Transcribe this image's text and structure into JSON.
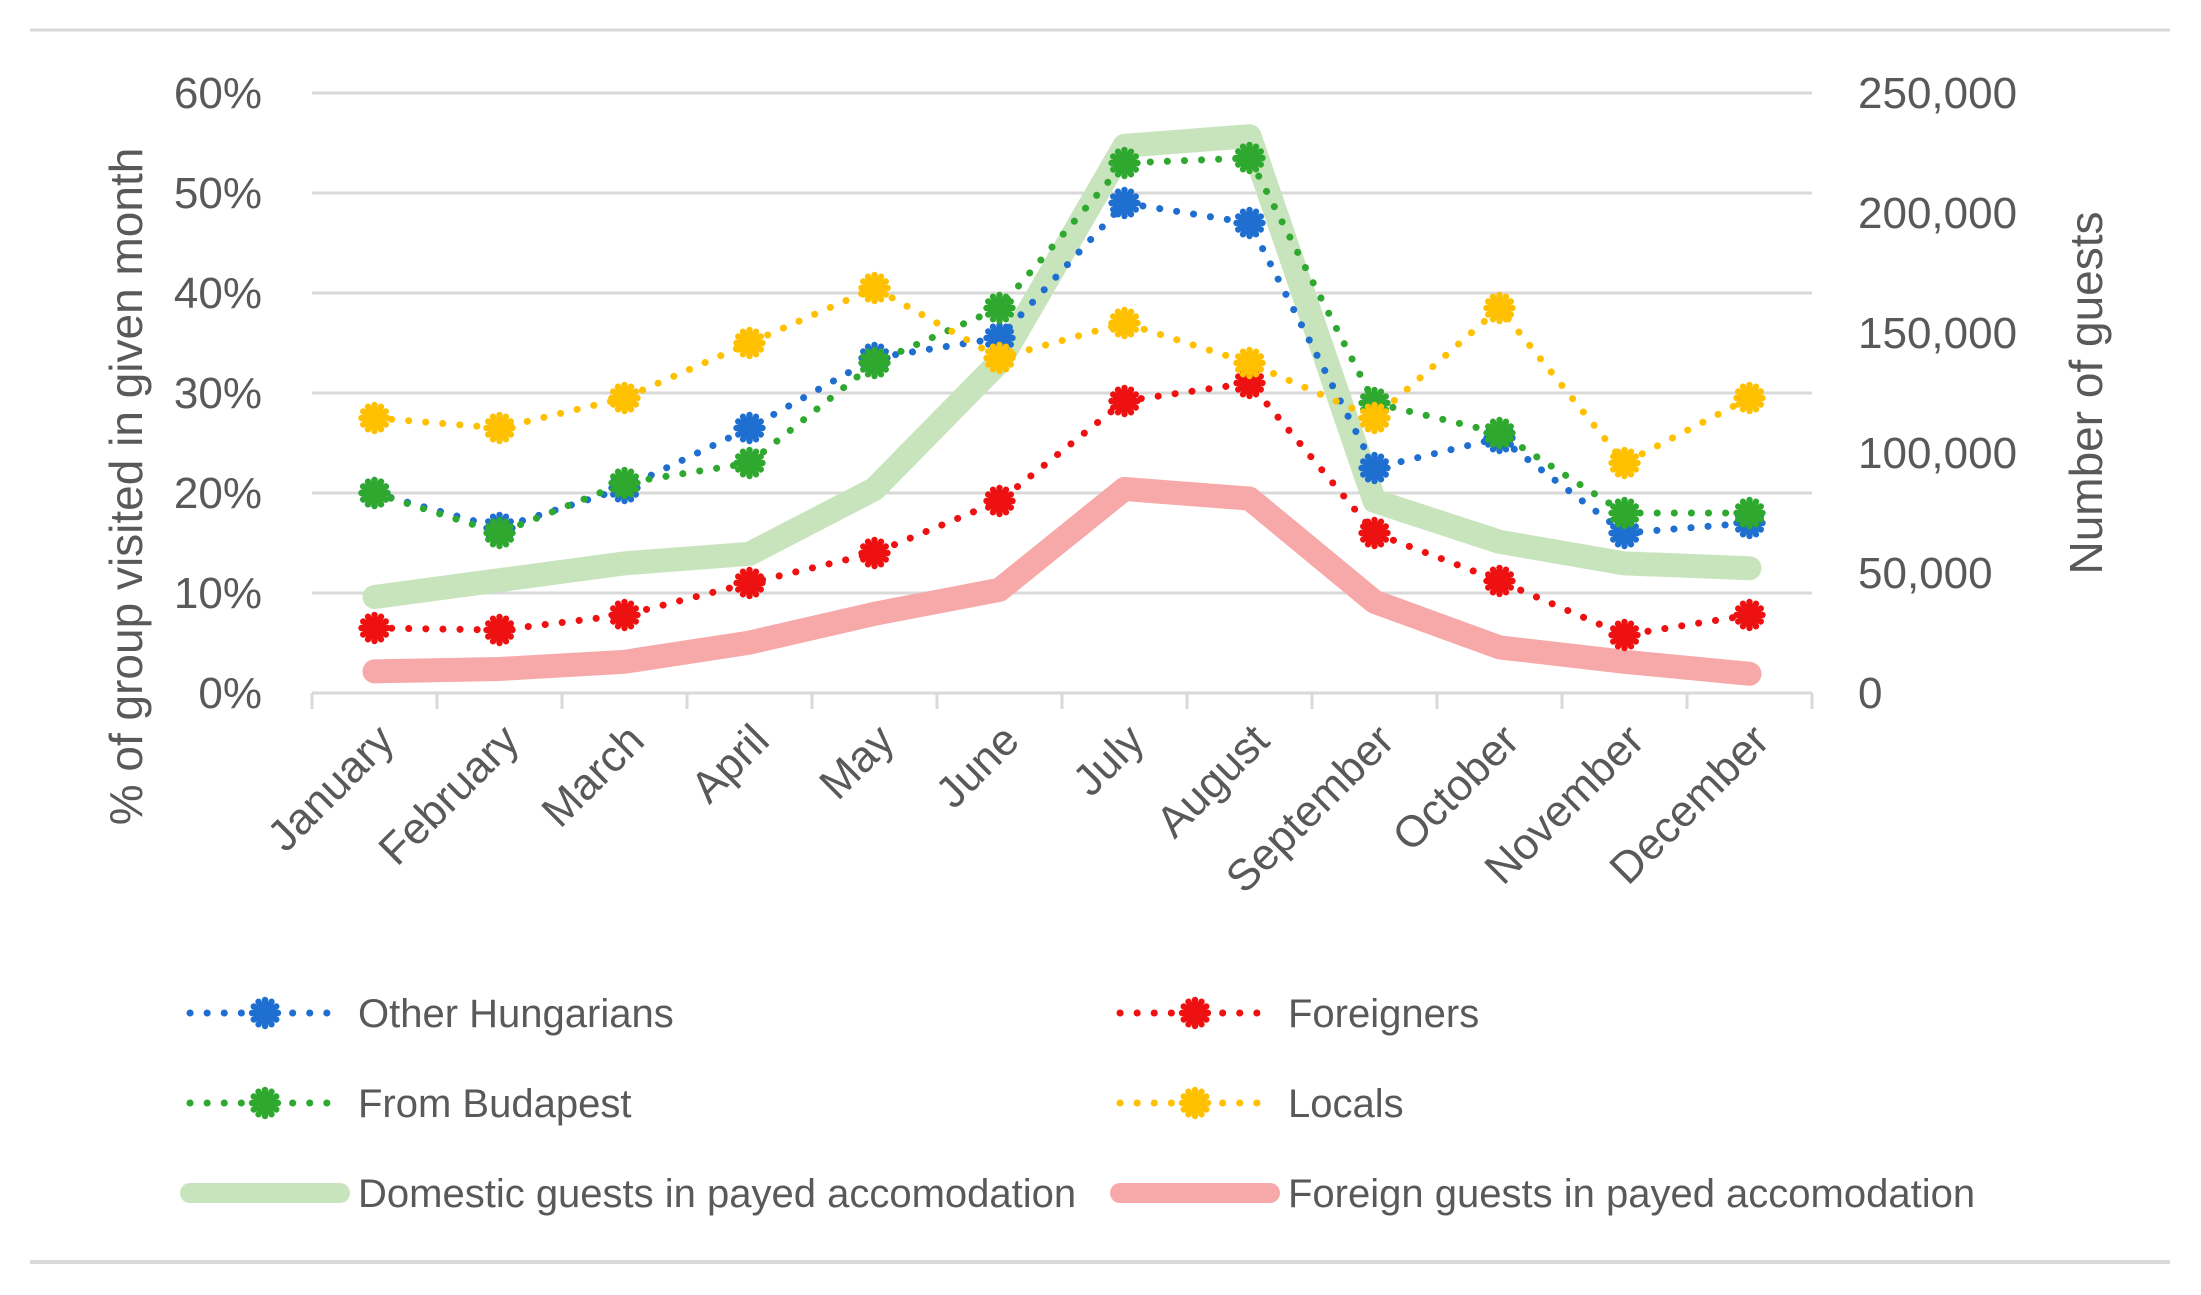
{
  "chart_data": {
    "type": "line",
    "title": "",
    "categories": [
      "January",
      "February",
      "March",
      "April",
      "May",
      "June",
      "July",
      "August",
      "September",
      "October",
      "November",
      "December"
    ],
    "ylabel": "% of group visited in given month",
    "y2label": "Number of guests",
    "ylim": [
      0,
      60
    ],
    "y2lim": [
      0,
      250000
    ],
    "yticks": [
      "0%",
      "10%",
      "20%",
      "30%",
      "40%",
      "50%",
      "60%"
    ],
    "y2ticks": [
      "0",
      "50,000",
      "100,000",
      "150,000",
      "200,000",
      "250,000"
    ],
    "grid": true,
    "legend_position": "bottom",
    "series": [
      {
        "name": "Other Hungarians",
        "axis": "left",
        "style": "dotted",
        "color": "#1f6fd1",
        "values": [
          20,
          16.5,
          20.5,
          26.5,
          33.5,
          35.5,
          49,
          47,
          22.5,
          25.5,
          16,
          17
        ]
      },
      {
        "name": "Foreigners",
        "axis": "left",
        "style": "dotted",
        "color": "#ee1111",
        "values": [
          6.5,
          6.3,
          7.8,
          11,
          14,
          19.2,
          29.2,
          31,
          16,
          11.2,
          5.8,
          7.8
        ]
      },
      {
        "name": "From Budapest",
        "axis": "left",
        "style": "dotted",
        "color": "#2ea82e",
        "values": [
          20,
          16,
          21,
          23,
          33,
          38.5,
          53,
          53.5,
          29,
          26,
          18,
          18
        ]
      },
      {
        "name": "Locals",
        "axis": "left",
        "style": "dotted",
        "color": "#ffc000",
        "values": [
          27.5,
          26.5,
          29.5,
          35,
          40.5,
          33.5,
          37,
          33,
          27.5,
          38.5,
          23,
          29.5
        ]
      },
      {
        "name": "Domestic guests in payed accomodation",
        "axis": "right",
        "style": "band",
        "color": "#c8e4bd",
        "values": [
          40000,
          47000,
          54000,
          58000,
          85000,
          138000,
          228000,
          232000,
          80000,
          63000,
          54000,
          52000
        ]
      },
      {
        "name": "Foreign guests in payed accomodation",
        "axis": "right",
        "style": "band",
        "color": "#f7a9a9",
        "values": [
          9000,
          10000,
          13000,
          21000,
          33000,
          43000,
          85000,
          81000,
          38000,
          19000,
          13000,
          8000
        ]
      }
    ]
  }
}
